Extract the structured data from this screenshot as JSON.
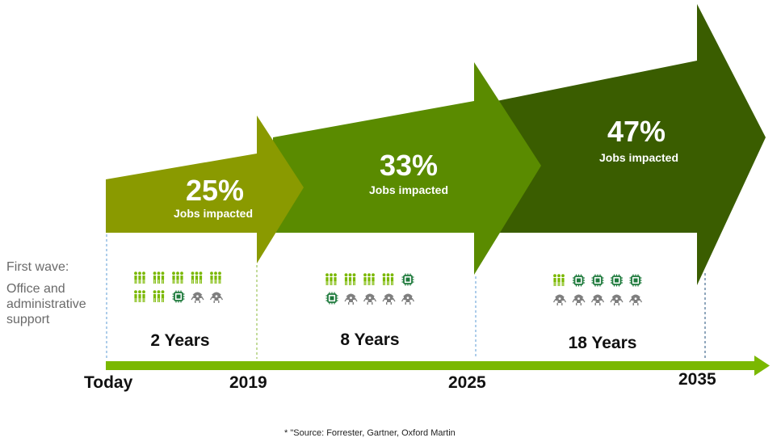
{
  "side_label": {
    "line1": "First wave:",
    "line2": "Office and administrative support"
  },
  "stages": [
    {
      "percent": "25%",
      "caption": "Jobs impacted",
      "years": "2 Years",
      "color": "#8a9a00",
      "icons": {
        "people": 7,
        "chips": 1,
        "robots": 2
      }
    },
    {
      "percent": "33%",
      "caption": "Jobs impacted",
      "years": "8 Years",
      "color": "#5a8b00",
      "icons": {
        "people": 4,
        "chips": 2,
        "robots": 4
      }
    },
    {
      "percent": "47%",
      "caption": "Jobs impacted",
      "years": "18 Years",
      "color": "#3a5d00",
      "icons": {
        "people": 1,
        "chips": 4,
        "robots": 5
      }
    }
  ],
  "timeline": {
    "labels": [
      "Today",
      "2019",
      "2025",
      "2035"
    ],
    "color": "#7ab800"
  },
  "colors": {
    "people": "#7ab800",
    "chip": "#1e7a3c",
    "robot": "#7f7f7f"
  },
  "source": "* \"Source: Forrester, Gartner, Oxford Martin"
}
